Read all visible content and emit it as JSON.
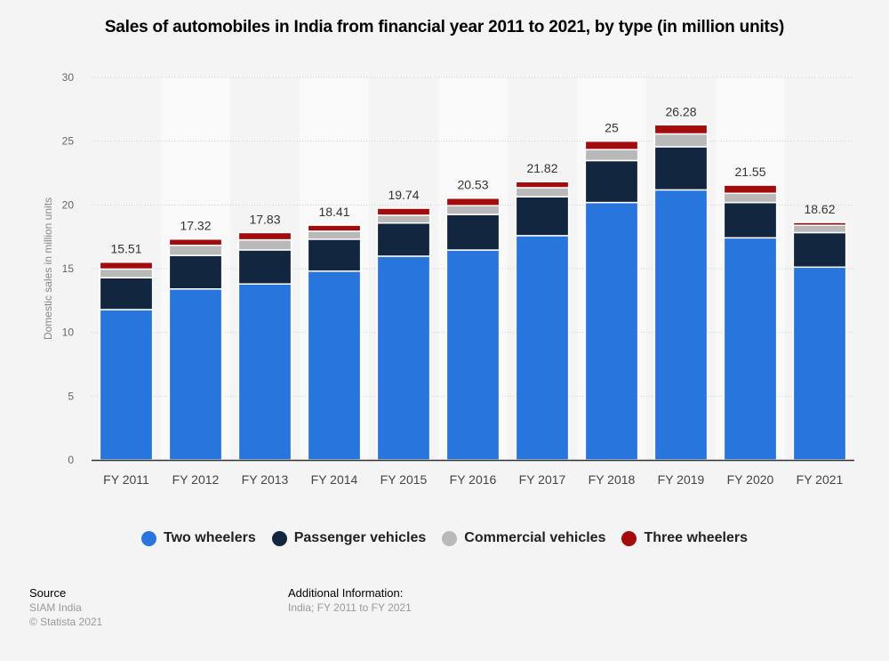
{
  "title": "Sales of automobiles in India from financial year 2011 to 2021, by type (in million units)",
  "colors": {
    "Two wheelers": "#2876dd",
    "Passenger vehicles": "#12263f",
    "Commercial vehicles": "#b9b9b9",
    "Three wheelers": "#a30b0c"
  },
  "legend": [
    "Two wheelers",
    "Passenger vehicles",
    "Commercial vehicles",
    "Three wheelers"
  ],
  "footer": {
    "source_heading": "Source",
    "source_name": "SIAM India",
    "copyright": "© Statista 2021",
    "additional_heading": "Additional Information:",
    "additional_text": "India; FY 2011 to FY 2021"
  },
  "chart_data": {
    "type": "bar",
    "stacked": true,
    "title": "Sales of automobiles in India from financial year 2011 to 2021, by type (in million units)",
    "xlabel": "",
    "ylabel": "Domestic sales in million units",
    "ylim": [
      0,
      30
    ],
    "yticks": [
      0,
      5,
      10,
      15,
      20,
      25,
      30
    ],
    "grid": true,
    "legend_position": "bottom",
    "categories": [
      "FY 2011",
      "FY 2012",
      "FY 2013",
      "FY 2014",
      "FY 2015",
      "FY 2016",
      "FY 2017",
      "FY 2018",
      "FY 2019",
      "FY 2020",
      "FY 2021"
    ],
    "series": [
      {
        "name": "Two wheelers",
        "values": [
          11.79,
          13.41,
          13.8,
          14.81,
          15.98,
          16.46,
          17.59,
          20.19,
          21.18,
          17.42,
          15.12
        ]
      },
      {
        "name": "Passenger vehicles",
        "values": [
          2.5,
          2.63,
          2.67,
          2.5,
          2.6,
          2.79,
          3.05,
          3.29,
          3.38,
          2.77,
          2.71
        ]
      },
      {
        "name": "Commercial vehicles",
        "values": [
          0.68,
          0.79,
          0.79,
          0.63,
          0.61,
          0.69,
          0.71,
          0.86,
          1.01,
          0.72,
          0.57
        ]
      },
      {
        "name": "Three wheelers",
        "values": [
          0.54,
          0.49,
          0.57,
          0.47,
          0.55,
          0.59,
          0.47,
          0.66,
          0.71,
          0.64,
          0.22
        ]
      }
    ],
    "totals": [
      "15.51",
      "17.32",
      "17.83",
      "18.41",
      "19.74",
      "20.53",
      "21.82",
      "25",
      "26.28",
      "21.55",
      "18.62"
    ]
  }
}
